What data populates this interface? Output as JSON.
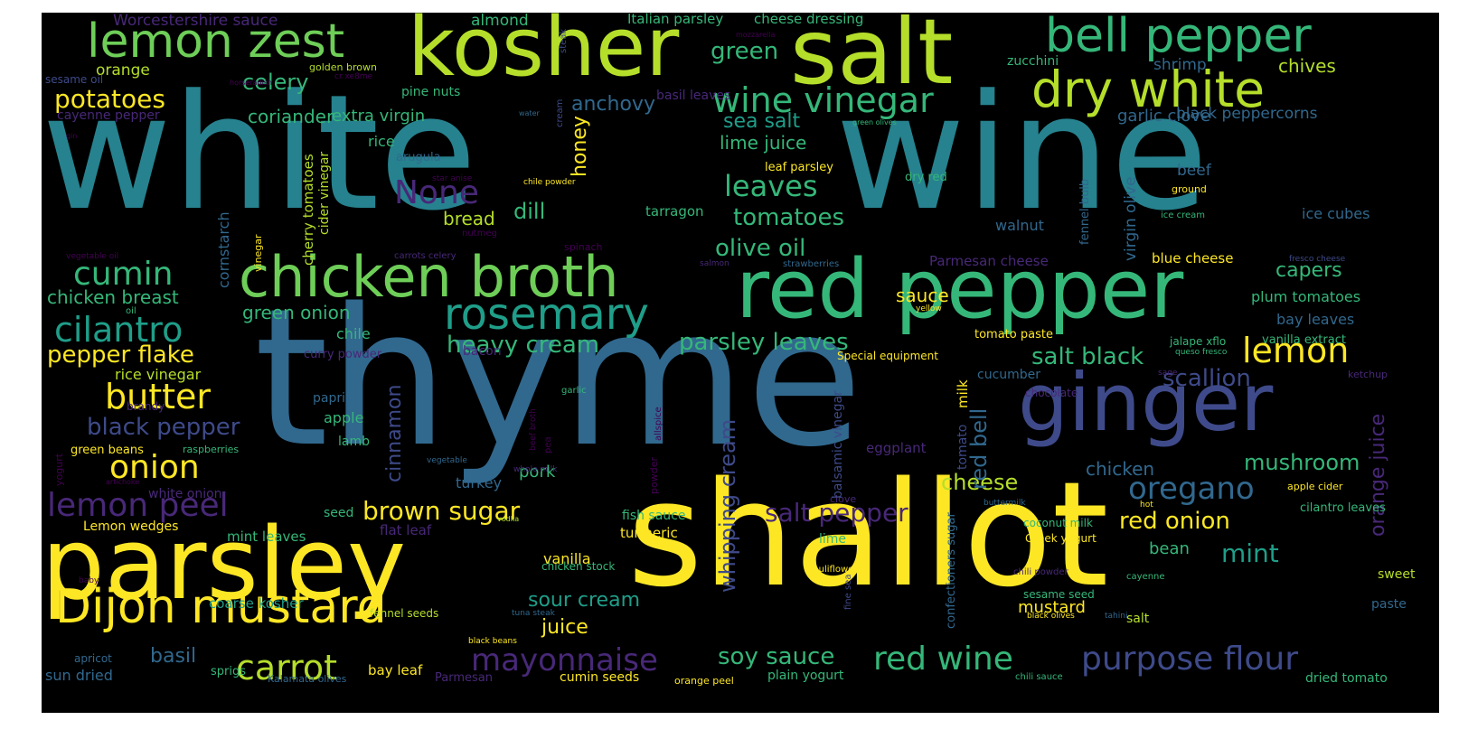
{
  "palette": {
    "background": "#000000",
    "yellow": "#fde725",
    "lime": "#b5de2b",
    "green": "#6ece58",
    "sea": "#35b779",
    "teal": "#1f9e89",
    "cyan": "#26828e",
    "blue": "#31688e",
    "indigo": "#3e4a89",
    "purple": "#482878",
    "violet": "#440154"
  },
  "words": [
    {
      "text": "white",
      "color": "#26828e"
    },
    {
      "text": "wine",
      "color": "#26828e"
    },
    {
      "text": "thyme",
      "color": "#31688e"
    },
    {
      "text": "shallot",
      "color": "#fde725"
    },
    {
      "text": "parsley",
      "color": "#fde725"
    },
    {
      "text": "kosher",
      "color": "#b5de2b"
    },
    {
      "text": "salt",
      "color": "#b5de2b"
    },
    {
      "text": "red pepper",
      "color": "#35b779"
    },
    {
      "text": "ginger",
      "color": "#3e4a89"
    },
    {
      "text": "chicken broth",
      "color": "#6ece58"
    },
    {
      "text": "dry white",
      "color": "#b5de2b"
    },
    {
      "text": "lemon zest",
      "color": "#6ece58"
    },
    {
      "text": "bell pepper",
      "color": "#35b779"
    },
    {
      "text": "Dijon mustard",
      "color": "#fde725"
    },
    {
      "text": "rosemary",
      "color": "#1f9e89"
    },
    {
      "text": "wine vinegar",
      "color": "#35b779"
    },
    {
      "text": "red wine",
      "color": "#35b779"
    },
    {
      "text": "purpose flour",
      "color": "#3e4a89"
    },
    {
      "text": "mayonnaise",
      "color": "#482878"
    },
    {
      "text": "lemon peel",
      "color": "#482878"
    },
    {
      "text": "carrot",
      "color": "#b5de2b"
    },
    {
      "text": "butter",
      "color": "#fde725"
    },
    {
      "text": "onion",
      "color": "#fde725"
    },
    {
      "text": "cilantro",
      "color": "#1f9e89"
    },
    {
      "text": "cumin",
      "color": "#35b779"
    },
    {
      "text": "lemon",
      "color": "#fde725"
    },
    {
      "text": "oregano",
      "color": "#31688e"
    },
    {
      "text": "brown sugar",
      "color": "#fde725"
    },
    {
      "text": "salt pepper",
      "color": "#482878"
    },
    {
      "text": "parsley leaves",
      "color": "#35b779"
    },
    {
      "text": "heavy cream",
      "color": "#35b779"
    },
    {
      "text": "soy sauce",
      "color": "#35b779"
    },
    {
      "text": "None",
      "color": "#482878"
    },
    {
      "text": "tomatoes",
      "color": "#35b779"
    },
    {
      "text": "leaves",
      "color": "#35b779"
    },
    {
      "text": "olive oil",
      "color": "#35b779"
    },
    {
      "text": "potatoes",
      "color": "#fde725"
    },
    {
      "text": "celery",
      "color": "#35b779"
    },
    {
      "text": "green",
      "color": "#35b779"
    },
    {
      "text": "red onion",
      "color": "#fde725"
    },
    {
      "text": "pepper flake",
      "color": "#fde725"
    },
    {
      "text": "black pepper",
      "color": "#3e4a89"
    },
    {
      "text": "mushroom",
      "color": "#35b779"
    },
    {
      "text": "cheese",
      "color": "#b5de2b"
    },
    {
      "text": "scallion",
      "color": "#3e4a89"
    },
    {
      "text": "salt black",
      "color": "#35b779"
    },
    {
      "text": "mint",
      "color": "#1f9e89"
    },
    {
      "text": "sour cream",
      "color": "#1f9e89"
    },
    {
      "text": "whipping cream",
      "color": "#3e4a89"
    },
    {
      "text": "cinnamon",
      "color": "#3e4a89"
    },
    {
      "text": "red bell",
      "color": "#31688e"
    },
    {
      "text": "orange juice",
      "color": "#482878"
    },
    {
      "text": "chicken breast",
      "color": "#35b779"
    },
    {
      "text": "green onion",
      "color": "#35b779"
    },
    {
      "text": "basil",
      "color": "#31688e"
    },
    {
      "text": "juice",
      "color": "#fde725"
    },
    {
      "text": "honey",
      "color": "#fde725"
    },
    {
      "text": "anchovy",
      "color": "#31688e"
    },
    {
      "text": "coriander",
      "color": "#35b779"
    },
    {
      "text": "sea salt",
      "color": "#1f9e89"
    },
    {
      "text": "lime juice",
      "color": "#35b779"
    },
    {
      "text": "capers",
      "color": "#35b779"
    },
    {
      "text": "dill",
      "color": "#35b779"
    },
    {
      "text": "bread",
      "color": "#b5de2b"
    },
    {
      "text": "chicken",
      "color": "#31688e"
    },
    {
      "text": "chives",
      "color": "#b5de2b"
    },
    {
      "text": "sauce",
      "color": "#fde725"
    },
    {
      "text": "extra virgin",
      "color": "#35b779"
    },
    {
      "text": "garlic clove",
      "color": "#31688e"
    },
    {
      "text": "black peppercorns",
      "color": "#31688e"
    },
    {
      "text": "shrimp",
      "color": "#31688e"
    },
    {
      "text": "beef",
      "color": "#31688e"
    },
    {
      "text": "plum tomatoes",
      "color": "#35b779"
    },
    {
      "text": "bay leaves",
      "color": "#31688e"
    },
    {
      "text": "pork",
      "color": "#35b779"
    },
    {
      "text": "chile",
      "color": "#35b779"
    },
    {
      "text": "rice vinegar",
      "color": "#b5de2b"
    },
    {
      "text": "bean",
      "color": "#35b779"
    },
    {
      "text": "mustard",
      "color": "#fde725"
    },
    {
      "text": "salt",
      "color": "#b5de2b"
    },
    {
      "text": "Worcestershire sauce",
      "color": "#482878"
    },
    {
      "text": "almond",
      "color": "#35b779"
    },
    {
      "text": "Italian parsley",
      "color": "#35b779"
    },
    {
      "text": "cheese dressing",
      "color": "#35b779"
    },
    {
      "text": "orange",
      "color": "#b5de2b"
    },
    {
      "text": "sesame oil",
      "color": "#3e4a89"
    },
    {
      "text": "golden brown",
      "color": "#b5de2b"
    },
    {
      "text": "horseradish",
      "color": "#440154"
    },
    {
      "text": "cayenne pepper",
      "color": "#482878"
    },
    {
      "text": "pine nuts",
      "color": "#35b779"
    },
    {
      "text": "basil leaves",
      "color": "#482878"
    },
    {
      "text": "zucchini",
      "color": "#35b779"
    },
    {
      "text": "rice",
      "color": "#35b779"
    },
    {
      "text": "arugula",
      "color": "#31688e"
    },
    {
      "text": "gin",
      "color": "#440154"
    },
    {
      "text": "leaf parsley",
      "color": "#fde725"
    },
    {
      "text": "dry red",
      "color": "#35b779"
    },
    {
      "text": "ground",
      "color": "#fde725"
    },
    {
      "text": "ice cream",
      "color": "#35b779"
    },
    {
      "text": "ice cubes",
      "color": "#31688e"
    },
    {
      "text": "tarragon",
      "color": "#35b779"
    },
    {
      "text": "walnut",
      "color": "#31688e"
    },
    {
      "text": "nutmeg",
      "color": "#440154"
    },
    {
      "text": "spinach",
      "color": "#440154"
    },
    {
      "text": "Parmesan cheese",
      "color": "#482878"
    },
    {
      "text": "blue cheese",
      "color": "#fde725"
    },
    {
      "text": "carrots celery",
      "color": "#482878"
    },
    {
      "text": "vegetable oil",
      "color": "#440154"
    },
    {
      "text": "salmon",
      "color": "#482878"
    },
    {
      "text": "strawberries",
      "color": "#31688e"
    },
    {
      "text": "fresco cheese",
      "color": "#3e4a89"
    },
    {
      "text": "yellow",
      "color": "#fde725"
    },
    {
      "text": "jalape xflo",
      "color": "#35b779"
    },
    {
      "text": "vanilla extract",
      "color": "#35b779"
    },
    {
      "text": "bacon",
      "color": "#482878"
    },
    {
      "text": "curry powder",
      "color": "#482878"
    },
    {
      "text": "tomato paste",
      "color": "#fde725"
    },
    {
      "text": "queso fresco",
      "color": "#35b779"
    },
    {
      "text": "Special equipment",
      "color": "#fde725"
    },
    {
      "text": "cucumber",
      "color": "#31688e"
    },
    {
      "text": "chocolate",
      "color": "#482878"
    },
    {
      "text": "sage",
      "color": "#482878"
    },
    {
      "text": "ketchup",
      "color": "#482878"
    },
    {
      "text": "brandy",
      "color": "#482878"
    },
    {
      "text": "paprika",
      "color": "#31688e"
    },
    {
      "text": "garlic",
      "color": "#35b779"
    },
    {
      "text": "apple",
      "color": "#35b779"
    },
    {
      "text": "lamb",
      "color": "#35b779"
    },
    {
      "text": "green beans",
      "color": "#fde725"
    },
    {
      "text": "raspberries",
      "color": "#35b779"
    },
    {
      "text": "eggplant",
      "color": "#482878"
    },
    {
      "text": "apple cider",
      "color": "#fde725"
    },
    {
      "text": "white onion",
      "color": "#482878"
    },
    {
      "text": "vegetable",
      "color": "#31688e"
    },
    {
      "text": "turkey",
      "color": "#31688e"
    },
    {
      "text": "whole milk",
      "color": "#482878"
    },
    {
      "text": "artichoke",
      "color": "#440154"
    },
    {
      "text": "clove",
      "color": "#482878"
    },
    {
      "text": "buttermilk",
      "color": "#31688e"
    },
    {
      "text": "hot",
      "color": "#fde725"
    },
    {
      "text": "cilantro leaves",
      "color": "#35b779"
    },
    {
      "text": "Lemon wedges",
      "color": "#fde725"
    },
    {
      "text": "seed",
      "color": "#35b779"
    },
    {
      "text": "mint leaves",
      "color": "#35b779"
    },
    {
      "text": "flat leaf",
      "color": "#482878"
    },
    {
      "text": "fish sauce",
      "color": "#35b779"
    },
    {
      "text": "turmeric",
      "color": "#fde725"
    },
    {
      "text": "vodka",
      "color": "#b5de2b"
    },
    {
      "text": "coconut milk",
      "color": "#35b779"
    },
    {
      "text": "Greek yogurt",
      "color": "#fde725"
    },
    {
      "text": "lime",
      "color": "#35b779"
    },
    {
      "text": "vanilla",
      "color": "#fde725"
    },
    {
      "text": "chicken stock",
      "color": "#35b779"
    },
    {
      "text": "cauliflower",
      "color": "#fde725"
    },
    {
      "text": "chili powder",
      "color": "#482878"
    },
    {
      "text": "cayenne",
      "color": "#35b779"
    },
    {
      "text": "sweet",
      "color": "#b5de2b"
    },
    {
      "text": "baby",
      "color": "#440154"
    },
    {
      "text": "coarse kosher",
      "color": "#1f9e89"
    },
    {
      "text": "fennel seeds",
      "color": "#b5de2b"
    },
    {
      "text": "tuna steak",
      "color": "#31688e"
    },
    {
      "text": "tahini",
      "color": "#31688e"
    },
    {
      "text": "sesame seed",
      "color": "#35b779"
    },
    {
      "text": "black olives",
      "color": "#fde725"
    },
    {
      "text": "paste",
      "color": "#31688e"
    },
    {
      "text": "apricot",
      "color": "#31688e"
    },
    {
      "text": "sprigs",
      "color": "#35b779"
    },
    {
      "text": "bay leaf",
      "color": "#fde725"
    },
    {
      "text": "black beans",
      "color": "#fde725"
    },
    {
      "text": "sun dried",
      "color": "#31688e"
    },
    {
      "text": "Kalamata olives",
      "color": "#31688e"
    },
    {
      "text": "Parmesan",
      "color": "#482878"
    },
    {
      "text": "cumin seeds",
      "color": "#fde725"
    },
    {
      "text": "orange peel",
      "color": "#fde725"
    },
    {
      "text": "plain yogurt",
      "color": "#35b779"
    },
    {
      "text": "chili sauce",
      "color": "#35b779"
    },
    {
      "text": "dried tomato",
      "color": "#35b779"
    },
    {
      "text": "oil",
      "color": "#35b779"
    },
    {
      "text": "water",
      "color": "#31688e"
    },
    {
      "text": "star anise",
      "color": "#440154"
    },
    {
      "text": "chile powder",
      "color": "#fde725"
    },
    {
      "text": "green olives",
      "color": "#35b779"
    },
    {
      "text": "mozzarella",
      "color": "#440154"
    },
    {
      "text": "cr xe8me",
      "color": "#440154"
    },
    {
      "text": "cornstarch",
      "color": "#31688e"
    },
    {
      "text": "cherry tomatoes",
      "color": "#b5de2b"
    },
    {
      "text": "cider vinegar",
      "color": "#b5de2b"
    },
    {
      "text": "vinegar",
      "color": "#fde725"
    },
    {
      "text": "virgin olive",
      "color": "#31688e"
    },
    {
      "text": "fennel bulb",
      "color": "#31688e"
    },
    {
      "text": "balsamic vinegar",
      "color": "#3e4a89"
    },
    {
      "text": "tomato",
      "color": "#3e4a89"
    },
    {
      "text": "milk",
      "color": "#fde725"
    },
    {
      "text": "beef broth",
      "color": "#440154"
    },
    {
      "text": "pea",
      "color": "#440154"
    },
    {
      "text": "powder",
      "color": "#440154"
    },
    {
      "text": "allspice",
      "color": "#440154"
    },
    {
      "text": "confectioners sugar",
      "color": "#31688e"
    },
    {
      "text": "fine sea",
      "color": "#3e4a89"
    },
    {
      "text": "yogurt",
      "color": "#440154"
    },
    {
      "text": "steak",
      "color": "#3e4a89"
    },
    {
      "text": "cream",
      "color": "#3e4a89"
    }
  ]
}
